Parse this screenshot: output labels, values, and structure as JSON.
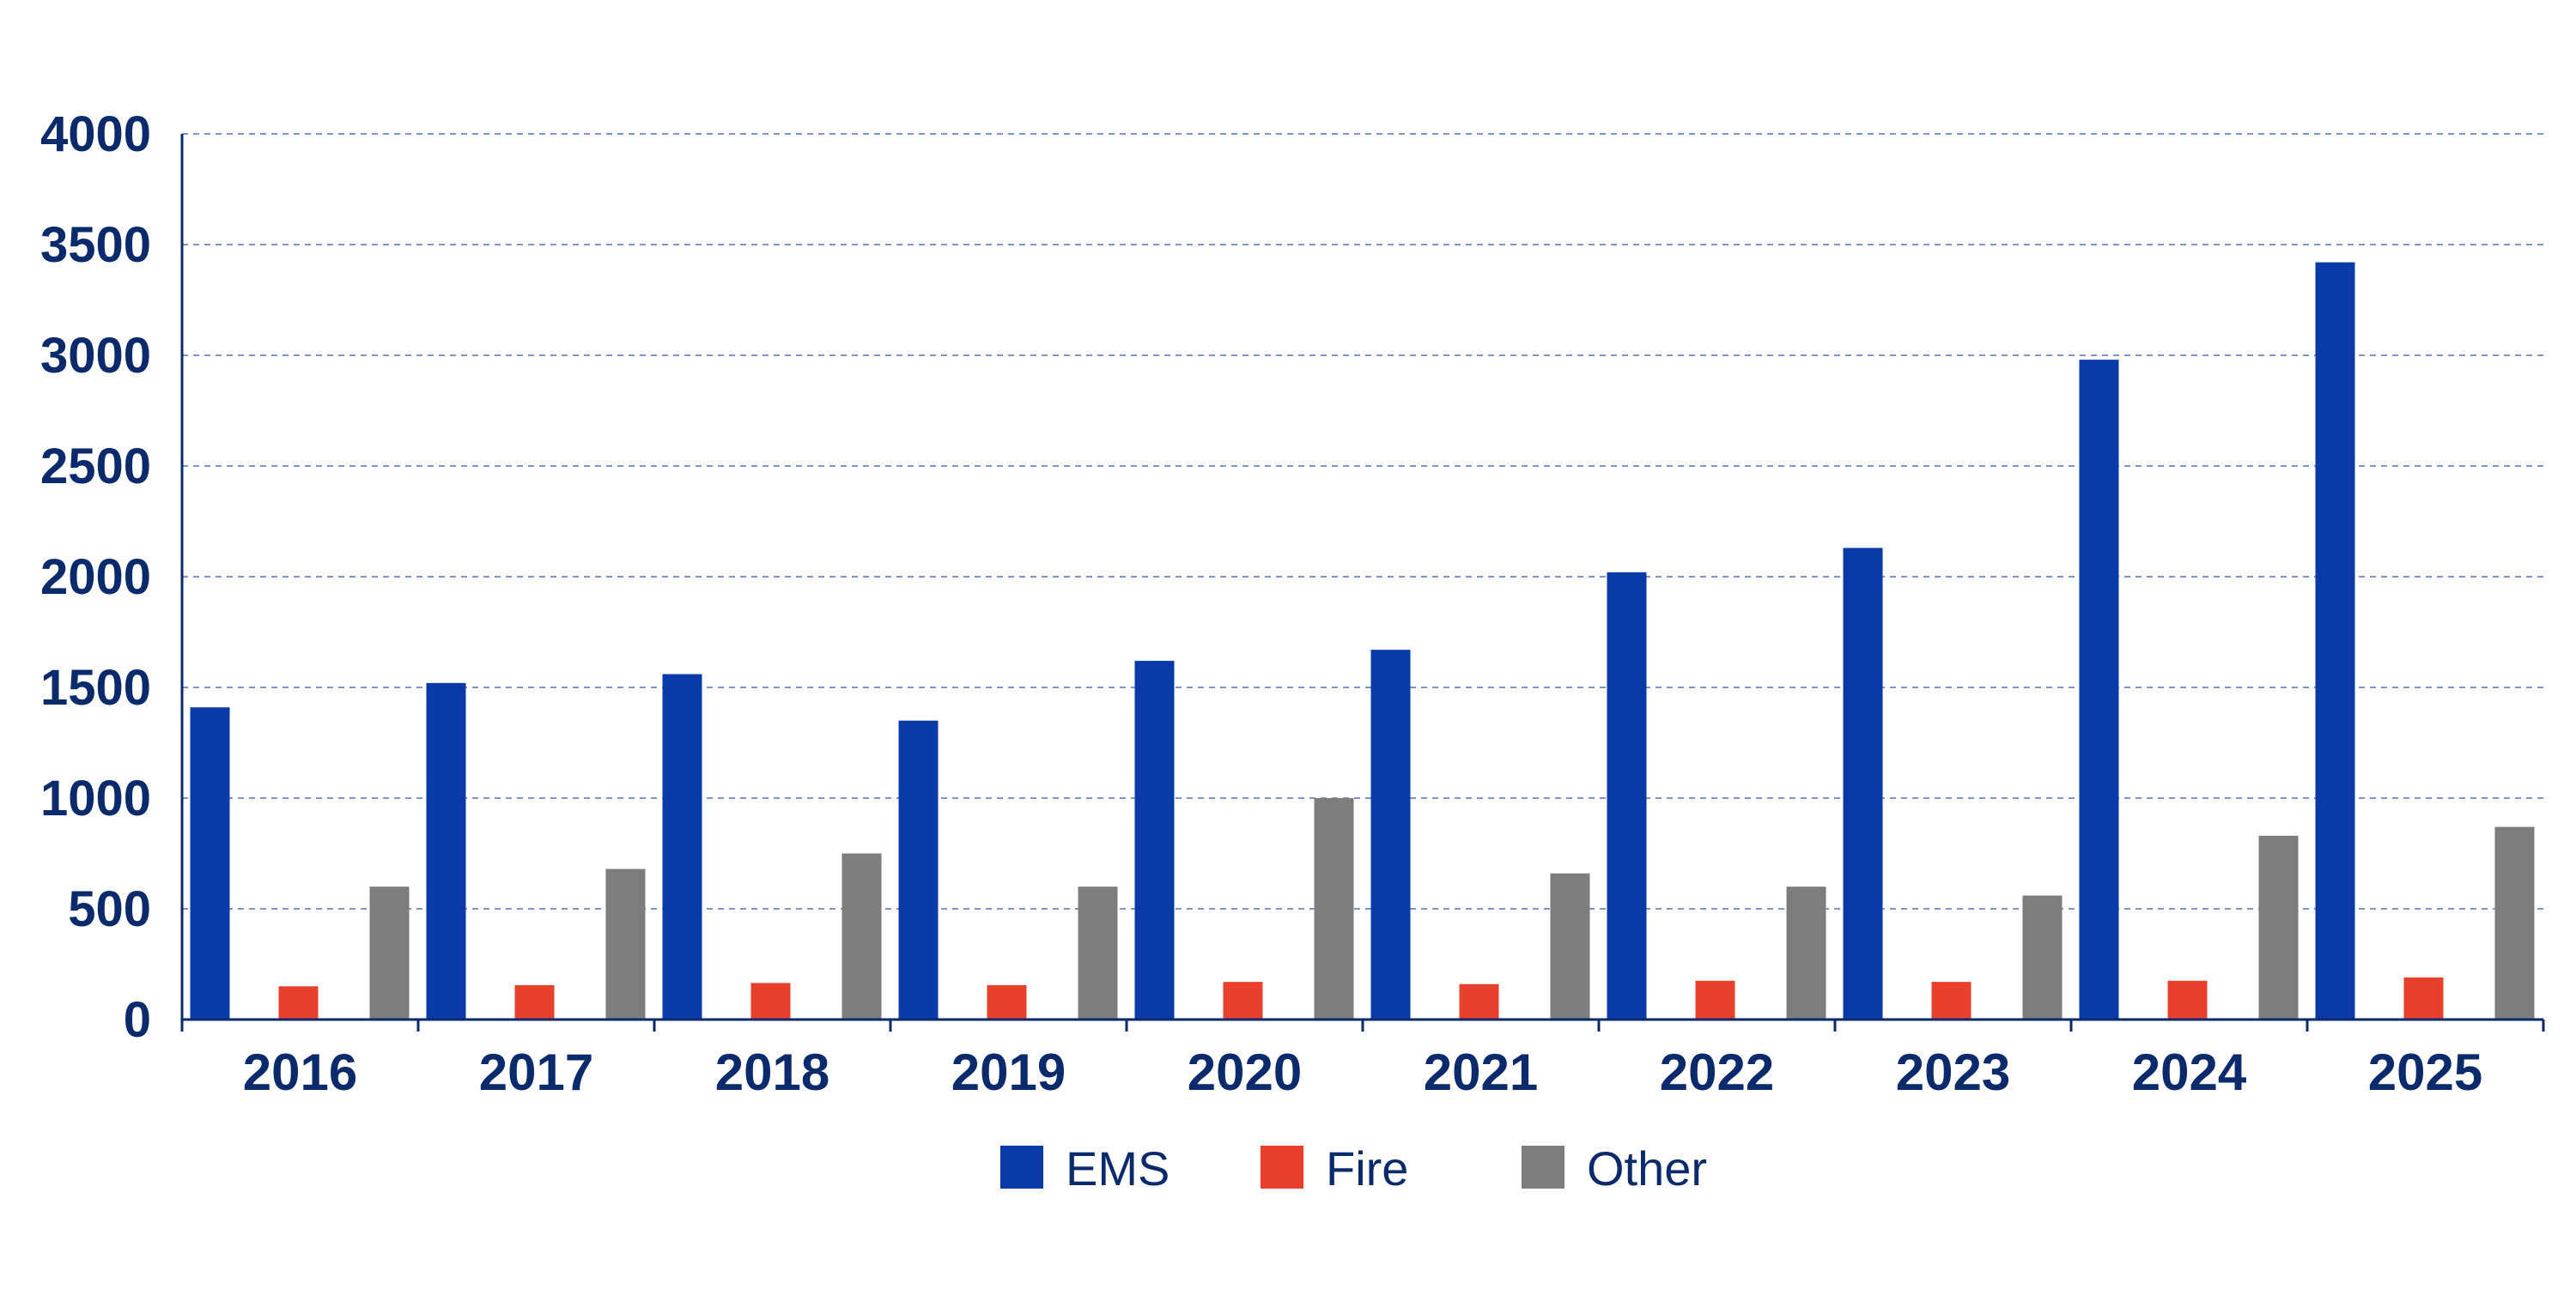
{
  "chart_data": {
    "type": "bar",
    "categories": [
      "2016",
      "2017",
      "2018",
      "2019",
      "2020",
      "2021",
      "2022",
      "2023",
      "2024",
      "2025"
    ],
    "series": [
      {
        "name": "EMS",
        "color": "#0a3aa8",
        "values": [
          1410,
          1520,
          1560,
          1350,
          1620,
          1670,
          2020,
          2130,
          2980,
          3420
        ]
      },
      {
        "name": "Fire",
        "color": "#e8402a",
        "values": [
          150,
          155,
          165,
          155,
          170,
          160,
          175,
          170,
          175,
          190
        ]
      },
      {
        "name": "Other",
        "color": "#7d7d7d",
        "values": [
          600,
          680,
          750,
          600,
          1000,
          660,
          600,
          560,
          830,
          870
        ]
      }
    ],
    "yticks": [
      "0",
      "500",
      "1000",
      "1500",
      "2000",
      "2500",
      "3000",
      "3500",
      "4000"
    ],
    "ylim": [
      0,
      4000
    ],
    "title": "",
    "xlabel": "",
    "ylabel": "",
    "grid": true,
    "legend": "bottom-center"
  }
}
